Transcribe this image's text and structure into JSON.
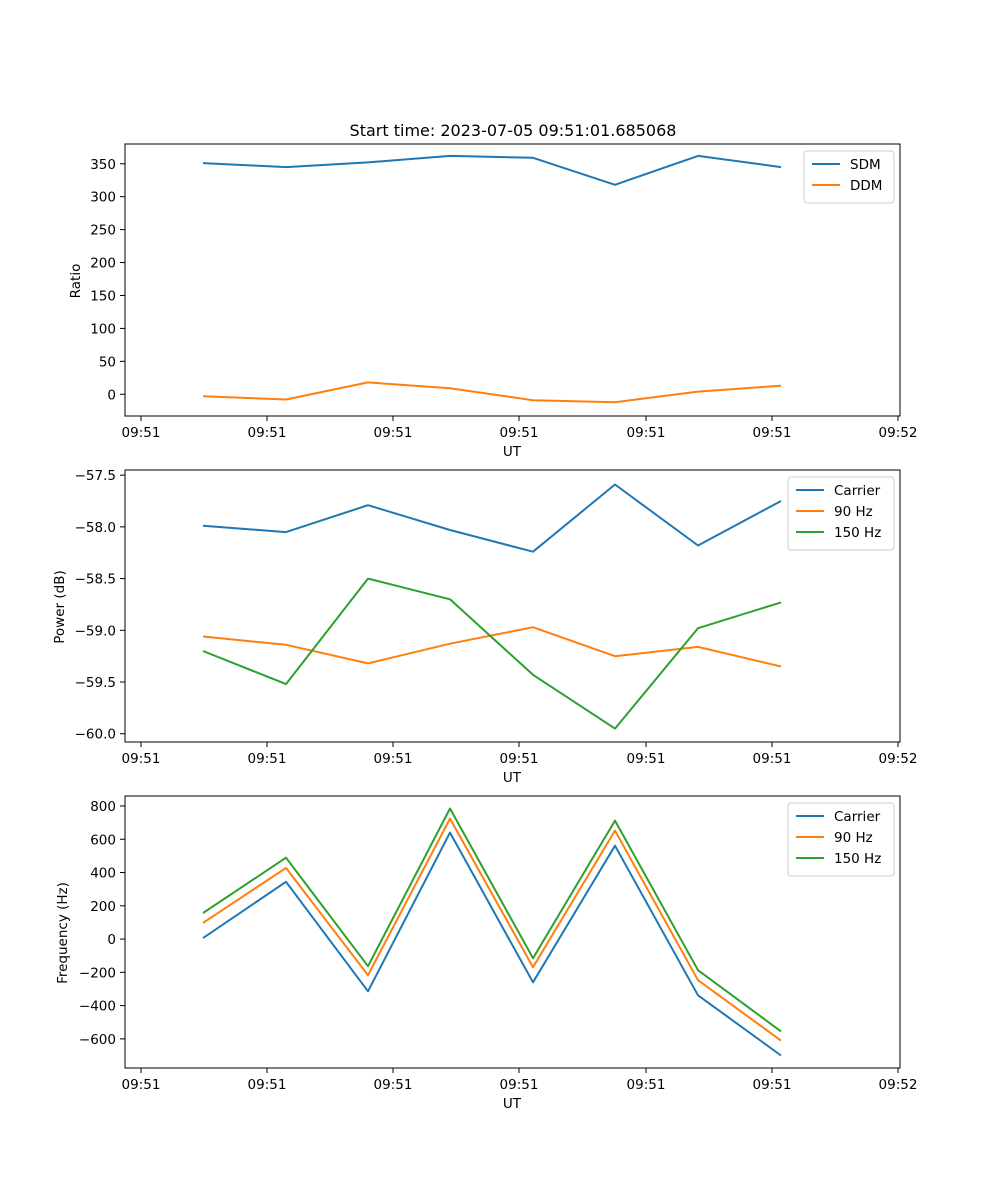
{
  "chart_data": [
    {
      "type": "line",
      "title": "Start time: 2023-07-05 09:51:01.685068",
      "xlabel": "UT",
      "ylabel": "Ratio",
      "xtick_labels": [
        "09:51",
        "09:51",
        "09:51",
        "09:51",
        "09:51",
        "09:51",
        "09:52"
      ],
      "ylim": [
        -33,
        380
      ],
      "yticks": [
        0,
        50,
        100,
        150,
        200,
        250,
        300,
        350
      ],
      "ytick_labels": [
        "0",
        "50",
        "100",
        "150",
        "200",
        "250",
        "300",
        "350"
      ],
      "legend_position": "top-right",
      "grid": false,
      "x": [
        1,
        2,
        3,
        4,
        5,
        6,
        7,
        8
      ],
      "series": [
        {
          "name": "SDM",
          "color": "#1f77b4",
          "values": [
            351,
            345,
            352,
            362,
            359,
            318,
            362,
            345
          ]
        },
        {
          "name": "DDM",
          "color": "#ff7f0e",
          "values": [
            -3,
            -8,
            18,
            9,
            -9,
            -12,
            4,
            13
          ]
        }
      ]
    },
    {
      "type": "line",
      "title": "",
      "xlabel": "UT",
      "ylabel": "Power (dB)",
      "xtick_labels": [
        "09:51",
        "09:51",
        "09:51",
        "09:51",
        "09:51",
        "09:51",
        "09:52"
      ],
      "ylim": [
        -60.08,
        -57.45
      ],
      "yticks": [
        -60.0,
        -59.5,
        -59.0,
        -58.5,
        -58.0,
        -57.5
      ],
      "ytick_labels": [
        "−60.0",
        "−59.5",
        "−59.0",
        "−58.5",
        "−58.0",
        "−57.5"
      ],
      "legend_position": "top-right",
      "grid": false,
      "x": [
        1,
        2,
        3,
        4,
        5,
        6,
        7,
        8
      ],
      "series": [
        {
          "name": "Carrier",
          "color": "#1f77b4",
          "values": [
            -57.99,
            -58.05,
            -57.79,
            -58.03,
            -58.24,
            -57.59,
            -58.18,
            -57.75
          ]
        },
        {
          "name": "90 Hz",
          "color": "#ff7f0e",
          "values": [
            -59.06,
            -59.14,
            -59.32,
            -59.13,
            -58.97,
            -59.25,
            -59.16,
            -59.35
          ]
        },
        {
          "name": "150 Hz",
          "color": "#2ca02c",
          "values": [
            -59.2,
            -59.52,
            -58.5,
            -58.7,
            -59.43,
            -59.95,
            -58.98,
            -58.73
          ]
        }
      ]
    },
    {
      "type": "line",
      "title": "",
      "xlabel": "UT",
      "ylabel": "Frequency (Hz)",
      "xtick_labels": [
        "09:51",
        "09:51",
        "09:51",
        "09:51",
        "09:51",
        "09:51",
        "09:52"
      ],
      "ylim": [
        -775,
        860
      ],
      "yticks": [
        -600,
        -400,
        -200,
        0,
        200,
        400,
        600,
        800
      ],
      "ytick_labels": [
        "−600",
        "−400",
        "−200",
        "0",
        "200",
        "400",
        "600",
        "800"
      ],
      "legend_position": "top-right",
      "grid": false,
      "x": [
        1,
        2,
        3,
        4,
        5,
        6,
        7,
        8
      ],
      "series": [
        {
          "name": "Carrier",
          "color": "#1f77b4",
          "values": [
            6,
            344,
            -314,
            640,
            -260,
            561,
            -338,
            -700
          ]
        },
        {
          "name": "90 Hz",
          "color": "#ff7f0e",
          "values": [
            97,
            428,
            -217,
            724,
            -169,
            652,
            -247,
            -610
          ]
        },
        {
          "name": "150 Hz",
          "color": "#2ca02c",
          "values": [
            157,
            489,
            -163,
            785,
            -115,
            712,
            -187,
            -555
          ]
        }
      ]
    }
  ]
}
